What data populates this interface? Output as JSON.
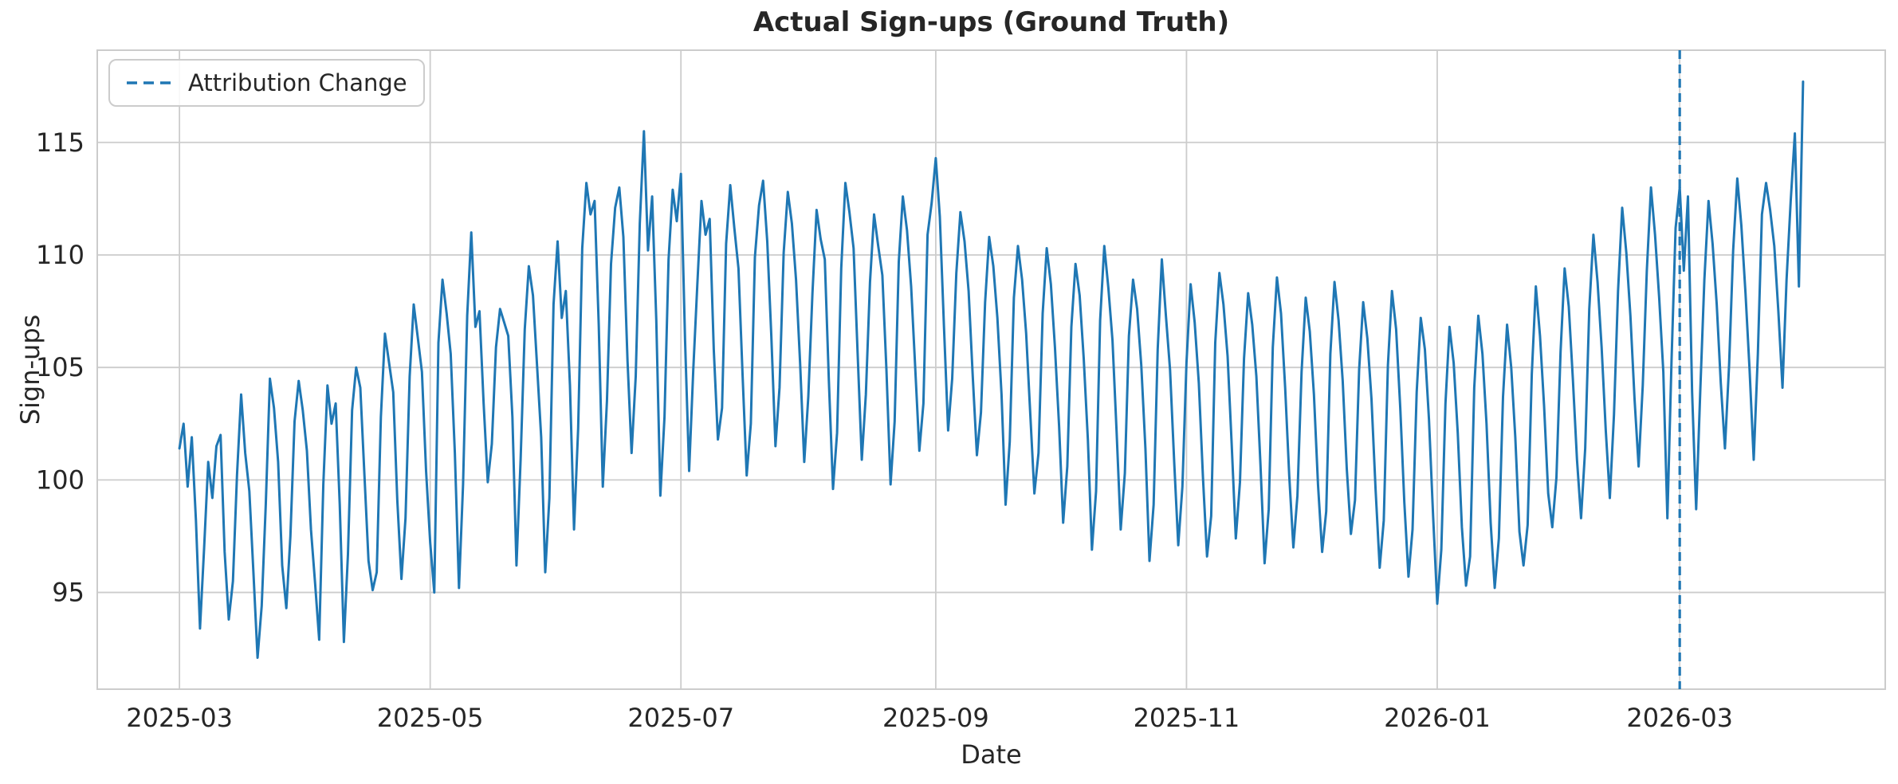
{
  "title": "Actual Sign-ups (Ground Truth)",
  "axes": {
    "x_label": "Date",
    "y_label": "Sign-ups"
  },
  "legend": {
    "items": [
      {
        "label": "Attribution Change",
        "line_style": "dashed",
        "color": "#1f77b4"
      }
    ]
  },
  "colors": {
    "line": "#1f77b4",
    "vline": "#1f77b4",
    "grid": "#cccccc",
    "axes_edge": "#cccccc",
    "text": "#262626",
    "background": "#ffffff"
  },
  "chart_data": {
    "type": "line",
    "title": "Actual Sign-ups (Ground Truth)",
    "xlabel": "Date",
    "ylabel": "Sign-ups",
    "series_name": "Actual Sign-ups",
    "frequency": "daily",
    "start_date": "2025-03-01",
    "end_date": "2026-03-31",
    "grid": true,
    "legend_position": "upper left",
    "ylim": [
      90.7,
      119.1
    ],
    "xlim_day_index": [
      -20,
      415
    ],
    "y_ticks": [
      95,
      100,
      105,
      110,
      115
    ],
    "x_ticks": [
      {
        "day_index": 0,
        "label": "2025-03"
      },
      {
        "day_index": 61,
        "label": "2025-05"
      },
      {
        "day_index": 122,
        "label": "2025-07"
      },
      {
        "day_index": 184,
        "label": "2025-09"
      },
      {
        "day_index": 245,
        "label": "2025-11"
      },
      {
        "day_index": 306,
        "label": "2026-01"
      },
      {
        "day_index": 365,
        "label": "2026-03"
      }
    ],
    "annotations": {
      "attribution_change": {
        "date": "2026-03-01",
        "day_index": 365,
        "style": "dashed",
        "color": "#1f77b4"
      }
    },
    "values": [
      101.4,
      102.5,
      99.7,
      101.9,
      98.2,
      93.4,
      97.0,
      100.8,
      99.2,
      101.5,
      102.0,
      96.8,
      93.8,
      95.5,
      100.2,
      103.8,
      101.2,
      99.5,
      95.9,
      92.1,
      94.4,
      98.9,
      104.5,
      103.2,
      100.8,
      96.2,
      94.3,
      97.5,
      102.6,
      104.4,
      103.1,
      101.3,
      97.8,
      95.4,
      92.9,
      99.8,
      104.2,
      102.5,
      103.4,
      98.9,
      92.8,
      96.7,
      103.1,
      105.0,
      104.1,
      100.2,
      96.4,
      95.1,
      95.9,
      102.8,
      106.5,
      105.2,
      103.9,
      99.1,
      95.6,
      98.3,
      104.6,
      107.8,
      106.3,
      104.8,
      100.4,
      97.2,
      95.0,
      106.1,
      108.9,
      107.4,
      105.6,
      101.2,
      95.2,
      99.8,
      107.3,
      111.0,
      106.8,
      107.5,
      103.4,
      99.9,
      101.6,
      105.9,
      107.6,
      107.0,
      106.4,
      102.8,
      96.2,
      100.9,
      106.7,
      109.5,
      108.2,
      105.1,
      101.9,
      95.9,
      99.2,
      107.8,
      110.6,
      107.2,
      108.4,
      104.2,
      97.8,
      102.3,
      110.3,
      113.2,
      111.8,
      112.4,
      106.9,
      99.7,
      103.5,
      109.6,
      112.1,
      113.0,
      110.8,
      105.3,
      101.2,
      104.6,
      111.4,
      115.5,
      110.2,
      112.6,
      107.1,
      99.3,
      102.8,
      109.8,
      112.9,
      111.5,
      113.6,
      106.2,
      100.4,
      104.9,
      108.7,
      112.4,
      110.9,
      111.6,
      105.8,
      101.8,
      103.2,
      110.5,
      113.1,
      111.2,
      109.4,
      104.7,
      100.2,
      102.5,
      109.9,
      112.2,
      113.3,
      110.6,
      106.4,
      101.5,
      104.1,
      110.1,
      112.8,
      111.4,
      108.9,
      105.2,
      100.8,
      103.7,
      108.3,
      112.0,
      110.7,
      109.8,
      104.4,
      99.6,
      102.1,
      109.4,
      113.2,
      111.9,
      110.3,
      105.6,
      100.9,
      103.8,
      108.8,
      111.8,
      110.4,
      109.1,
      104.9,
      99.8,
      102.6,
      109.7,
      112.6,
      111.1,
      108.6,
      105.0,
      101.3,
      103.4,
      110.9,
      112.3,
      114.3,
      111.7,
      106.8,
      102.2,
      104.5,
      109.2,
      111.9,
      110.6,
      108.4,
      104.6,
      101.1,
      103.0,
      107.9,
      110.8,
      109.5,
      107.2,
      103.8,
      98.9,
      101.7,
      108.1,
      110.4,
      108.9,
      106.5,
      102.9,
      99.4,
      101.2,
      107.4,
      110.3,
      108.7,
      105.9,
      102.4,
      98.1,
      100.6,
      106.8,
      109.6,
      108.2,
      105.4,
      101.8,
      96.9,
      99.5,
      107.1,
      110.4,
      108.5,
      106.2,
      102.1,
      97.8,
      100.3,
      106.4,
      108.9,
      107.6,
      105.1,
      101.4,
      96.4,
      98.9,
      105.8,
      109.8,
      107.3,
      104.9,
      100.8,
      97.1,
      99.7,
      105.2,
      108.7,
      107.0,
      104.3,
      100.1,
      96.6,
      98.4,
      106.1,
      109.2,
      107.8,
      105.5,
      101.6,
      97.4,
      99.9,
      105.4,
      108.3,
      106.9,
      104.6,
      100.7,
      96.3,
      98.7,
      105.9,
      109.0,
      107.4,
      104.1,
      100.2,
      97.0,
      99.3,
      104.8,
      108.1,
      106.6,
      103.8,
      99.8,
      96.8,
      98.6,
      105.6,
      108.8,
      107.1,
      104.4,
      100.5,
      97.6,
      99.1,
      104.9,
      107.9,
      106.3,
      103.6,
      99.6,
      96.1,
      98.2,
      105.1,
      108.4,
      106.7,
      103.2,
      99.0,
      95.7,
      97.8,
      103.9,
      107.2,
      105.8,
      102.7,
      98.4,
      94.5,
      96.9,
      103.4,
      106.8,
      105.2,
      102.1,
      97.9,
      95.3,
      96.6,
      104.1,
      107.3,
      105.6,
      102.5,
      98.1,
      95.2,
      97.4,
      103.7,
      106.9,
      105.0,
      101.9,
      97.7,
      96.2,
      98.0,
      104.7,
      108.6,
      106.4,
      103.3,
      99.4,
      97.9,
      100.1,
      105.7,
      109.4,
      107.7,
      104.5,
      100.9,
      98.3,
      101.4,
      107.6,
      110.9,
      108.8,
      105.9,
      102.2,
      99.2,
      102.9,
      108.4,
      112.1,
      110.1,
      107.3,
      103.6,
      100.6,
      104.2,
      109.3,
      113.0,
      110.9,
      108.1,
      104.8,
      98.3,
      105.3,
      111.2,
      113.0,
      109.3,
      112.6,
      103.9,
      98.7,
      104.0,
      108.9,
      112.4,
      110.5,
      107.8,
      104.3,
      101.4,
      105.1,
      110.2,
      113.4,
      111.3,
      108.3,
      104.9,
      100.9,
      105.6,
      111.8,
      113.2,
      112.0,
      110.4,
      107.5,
      104.1,
      108.9,
      112.4,
      115.4,
      108.6,
      117.7
    ]
  }
}
